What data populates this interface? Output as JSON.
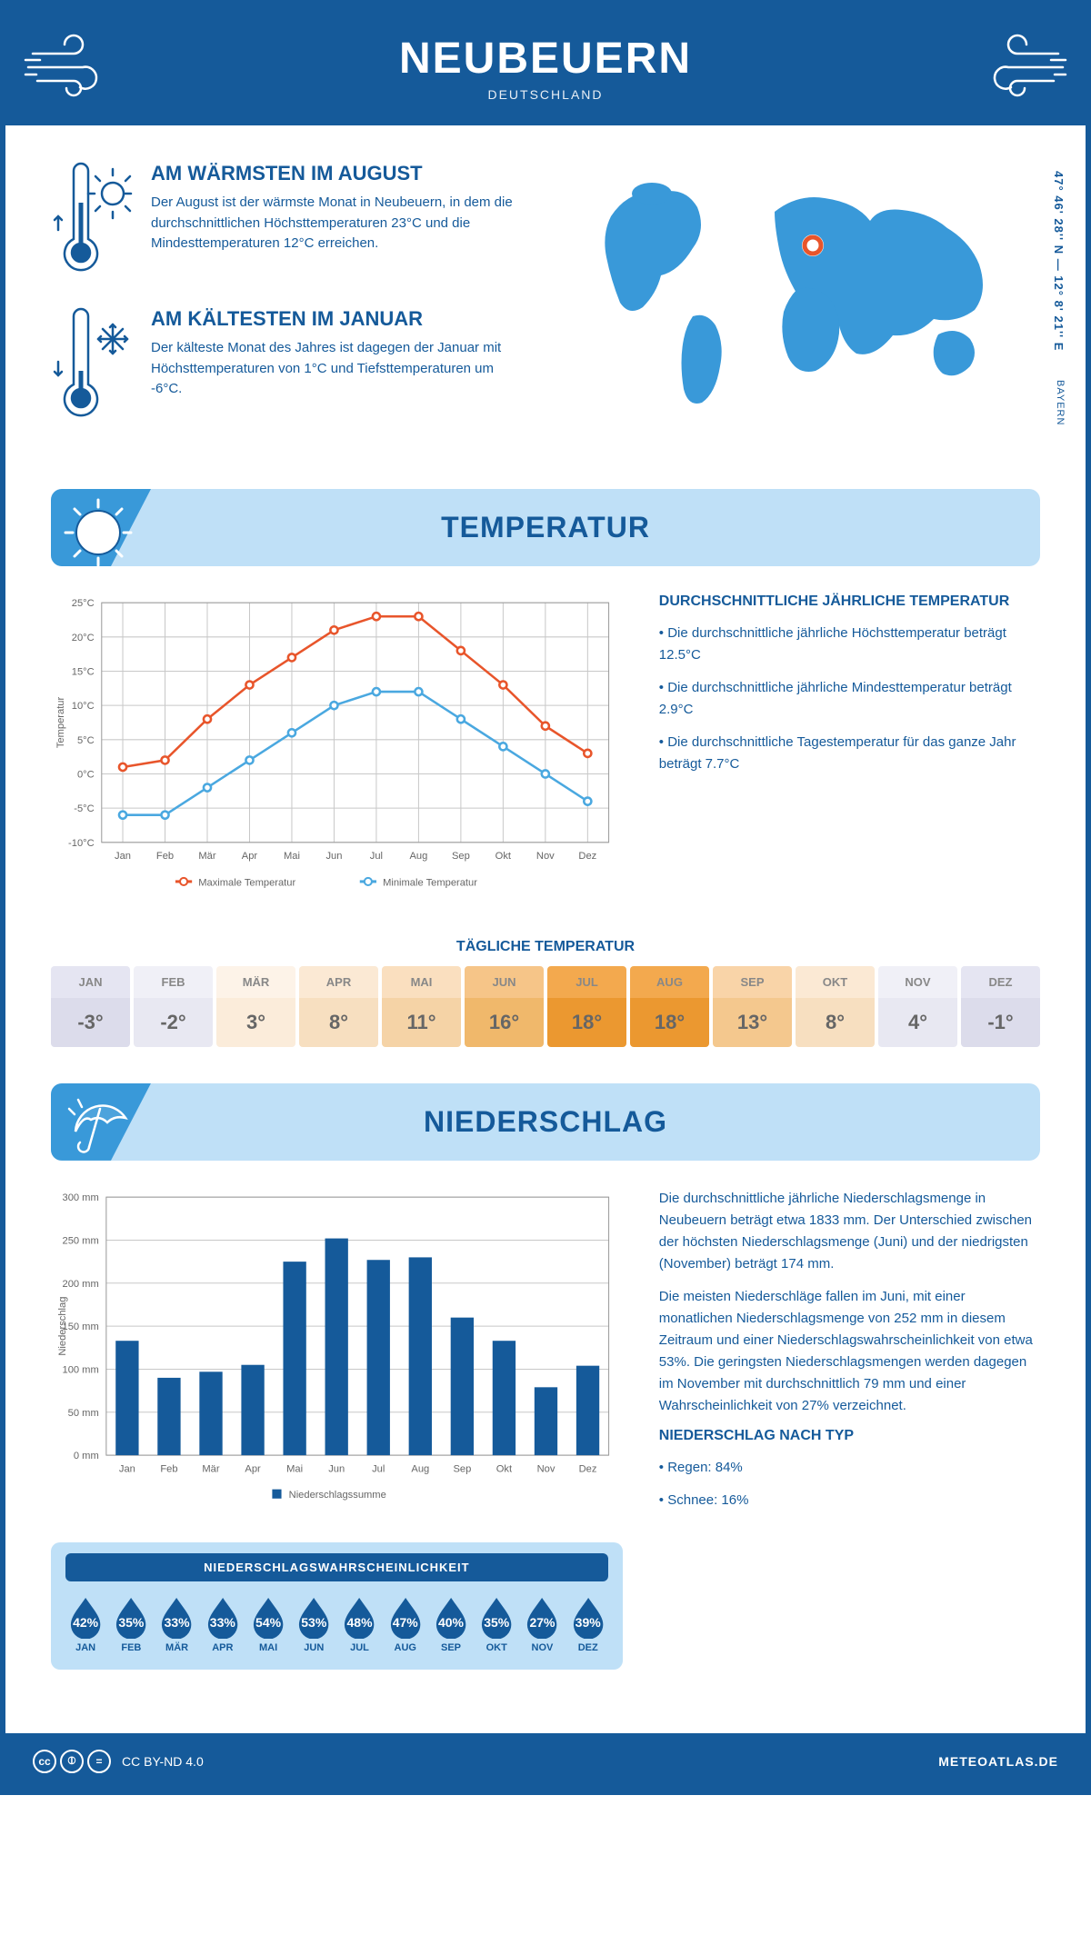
{
  "header": {
    "title": "NEUBEUERN",
    "subtitle": "DEUTSCHLAND"
  },
  "intro": {
    "warm": {
      "title": "AM WÄRMSTEN IM AUGUST",
      "text": "Der August ist der wärmste Monat in Neubeuern, in dem die durchschnittlichen Höchsttemperaturen 23°C und die Mindesttemperaturen 12°C erreichen."
    },
    "cold": {
      "title": "AM KÄLTESTEN IM JANUAR",
      "text": "Der kälteste Monat des Jahres ist dagegen der Januar mit Höchsttemperaturen von 1°C und Tiefsttemperaturen um -6°C."
    },
    "coords": "47° 46' 28'' N — 12° 8' 21'' E",
    "region": "BAYERN"
  },
  "temperature": {
    "section_title": "TEMPERATUR",
    "chart": {
      "months": [
        "Jan",
        "Feb",
        "Mär",
        "Apr",
        "Mai",
        "Jun",
        "Jul",
        "Aug",
        "Sep",
        "Okt",
        "Nov",
        "Dez"
      ],
      "max": [
        1,
        2,
        8,
        13,
        17,
        21,
        23,
        23,
        18,
        13,
        7,
        3
      ],
      "min": [
        -6,
        -6,
        -2,
        2,
        6,
        10,
        12,
        12,
        8,
        4,
        0,
        -4
      ],
      "ylim": [
        -10,
        25
      ],
      "ytick_step": 5,
      "ylabel": "Temperatur",
      "max_color": "#e8552b",
      "min_color": "#4aa8e0",
      "max_legend": "Maximale Temperatur",
      "min_legend": "Minimale Temperatur",
      "grid_color": "#c8c8c8",
      "background": "#ffffff"
    },
    "info": {
      "title": "DURCHSCHNITTLICHE JÄHRLICHE TEMPERATUR",
      "p1": "• Die durchschnittliche jährliche Höchsttemperatur beträgt 12.5°C",
      "p2": "• Die durchschnittliche jährliche Mindesttemperatur beträgt 2.9°C",
      "p3": "• Die durchschnittliche Tagestemperatur für das ganze Jahr beträgt 7.7°C"
    },
    "daily": {
      "title": "TÄGLICHE TEMPERATUR",
      "months": [
        "JAN",
        "FEB",
        "MÄR",
        "APR",
        "MAI",
        "JUN",
        "JUL",
        "AUG",
        "SEP",
        "OKT",
        "NOV",
        "DEZ"
      ],
      "values": [
        "-3°",
        "-2°",
        "3°",
        "8°",
        "11°",
        "16°",
        "18°",
        "18°",
        "13°",
        "8°",
        "4°",
        "-1°"
      ],
      "bg_head": [
        "#e5e5f2",
        "#f0f0f7",
        "#fdf3e8",
        "#fbe9d4",
        "#fadfbf",
        "#f6c588",
        "#f3a94e",
        "#f3a94e",
        "#f9d4a8",
        "#fbe9d4",
        "#f0f0f7",
        "#e5e5f2"
      ],
      "bg_val": [
        "#dcdceb",
        "#e8e8f2",
        "#fbecda",
        "#f7dfc0",
        "#f5d3a6",
        "#f0b86b",
        "#eb9830",
        "#eb9830",
        "#f4c88e",
        "#f7dfc0",
        "#e8e8f2",
        "#dcdceb"
      ]
    }
  },
  "precipitation": {
    "section_title": "NIEDERSCHLAG",
    "chart": {
      "months": [
        "Jan",
        "Feb",
        "Mär",
        "Apr",
        "Mai",
        "Jun",
        "Jul",
        "Aug",
        "Sep",
        "Okt",
        "Nov",
        "Dez"
      ],
      "values": [
        133,
        90,
        97,
        105,
        225,
        252,
        227,
        230,
        160,
        133,
        79,
        104
      ],
      "ylim": [
        0,
        300
      ],
      "ytick_step": 50,
      "ylabel": "Niederschlag",
      "bar_color": "#155a9a",
      "legend": "Niederschlagssumme",
      "grid_color": "#c8c8c8"
    },
    "info": {
      "p1": "Die durchschnittliche jährliche Niederschlagsmenge in Neubeuern beträgt etwa 1833 mm. Der Unterschied zwischen der höchsten Niederschlagsmenge (Juni) und der niedrigsten (November) beträgt 174 mm.",
      "p2": "Die meisten Niederschläge fallen im Juni, mit einer monatlichen Niederschlagsmenge von 252 mm in diesem Zeitraum und einer Niederschlagswahrscheinlichkeit von etwa 53%. Die geringsten Niederschlagsmengen werden dagegen im November mit durchschnittlich 79 mm und einer Wahrscheinlichkeit von 27% verzeichnet.",
      "type_title": "NIEDERSCHLAG NACH TYP",
      "type_rain": "• Regen: 84%",
      "type_snow": "• Schnee: 16%"
    },
    "probability": {
      "title": "NIEDERSCHLAGSWAHRSCHEINLICHKEIT",
      "months": [
        "JAN",
        "FEB",
        "MÄR",
        "APR",
        "MAI",
        "JUN",
        "JUL",
        "AUG",
        "SEP",
        "OKT",
        "NOV",
        "DEZ"
      ],
      "values": [
        "42%",
        "35%",
        "33%",
        "33%",
        "54%",
        "53%",
        "48%",
        "47%",
        "40%",
        "35%",
        "27%",
        "39%"
      ],
      "drop_color": "#155a9a"
    }
  },
  "footer": {
    "license": "CC BY-ND 4.0",
    "site": "METEOATLAS.DE"
  },
  "colors": {
    "primary": "#155a9a",
    "lightblue": "#bfe0f7",
    "midblue": "#3999d9",
    "marker": "#e8552b"
  }
}
